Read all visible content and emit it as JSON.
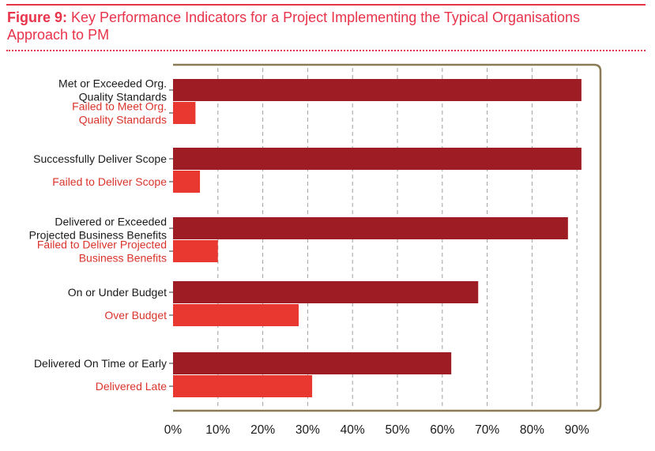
{
  "figure": {
    "prefix": "Figure 9:",
    "title": "Key Performance Indicators for a Project Implementing the Typical Organisations Approach to PM"
  },
  "colors": {
    "accent": "#e8334a",
    "positive_bar": "#9e1c24",
    "negative_bar": "#e8382f",
    "positive_label": "#1a1a1a",
    "negative_label": "#d9342b",
    "frame": "#8a7a55",
    "grid": "#a0a0a0"
  },
  "chart_data": {
    "type": "bar",
    "orientation": "horizontal",
    "title": "Key Performance Indicators for a Project Implementing the Typical Organisations Approach to PM",
    "xlabel": "",
    "ylabel": "",
    "xlim": [
      0,
      95
    ],
    "grid": true,
    "ticks": [
      "0%",
      "10%",
      "20%",
      "30%",
      "40%",
      "50%",
      "60%",
      "70%",
      "80%",
      "90%"
    ],
    "tick_values": [
      0,
      10,
      20,
      30,
      40,
      50,
      60,
      70,
      80,
      90
    ],
    "bars": [
      {
        "label": "Met or Exceeded Org.\nQuality Standards",
        "value": 91,
        "kind": "positive"
      },
      {
        "label": "Failed to Meet Org.\nQuality Standards",
        "value": 5,
        "kind": "negative"
      },
      {
        "label": "Successfully Deliver Scope",
        "value": 91,
        "kind": "positive"
      },
      {
        "label": "Failed to Deliver Scope",
        "value": 6,
        "kind": "negative"
      },
      {
        "label": "Delivered or Exceeded\nProjected Business Benefits",
        "value": 88,
        "kind": "positive"
      },
      {
        "label": "Failed to Deliver Projected\nBusiness Benefits",
        "value": 10,
        "kind": "negative"
      },
      {
        "label": "On or Under Budget",
        "value": 68,
        "kind": "positive"
      },
      {
        "label": "Over Budget",
        "value": 28,
        "kind": "negative"
      },
      {
        "label": "Delivered On Time or Early",
        "value": 62,
        "kind": "positive"
      },
      {
        "label": "Delivered Late",
        "value": 31,
        "kind": "negative"
      }
    ]
  }
}
